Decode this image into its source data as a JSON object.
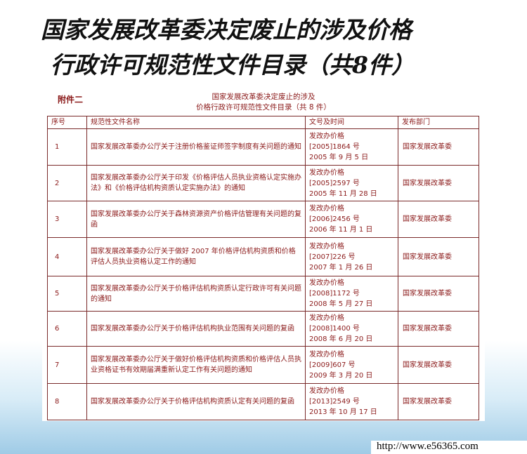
{
  "header": {
    "title_lines": [
      "国家发展改革委决定废止的涉及价格",
      "行政许可规范性文件目录（共8件）"
    ]
  },
  "document": {
    "attachment": "附件二",
    "title_lines": [
      "国家发展改革委决定废止的涉及",
      "价格行政许可规范性文件目录（共 8 件）"
    ]
  },
  "table": {
    "columns": [
      "序号",
      "规范性文件名称",
      "文号及时间",
      "发布部门"
    ],
    "rows": [
      [
        "1",
        "国家发展改革委办公厅关于注册价格鉴证师签字制度有关问题的通知",
        [
          "发改办价格",
          "[2005]1864 号",
          "2005 年 9 月 5 日"
        ],
        "国家发展改革委"
      ],
      [
        "2",
        "国家发展改革委办公厅关于印发《价格评估人员执业资格认定实施办法》和《价格评估机构资质认定实施办法》的通知",
        [
          "发改办价格",
          "[2005]2597 号",
          "2005 年 11 月 28 日"
        ],
        "国家发展改革委"
      ],
      [
        "3",
        "国家发展改革委办公厅关于森林资源资产价格评估管理有关问题的复函",
        [
          "发改办价格",
          "[2006]2456 号",
          "2006 年 11 月 1 日"
        ],
        "国家发展改革委"
      ],
      [
        "4",
        "国家发展改革委办公厅关于做好 2007 年价格评估机构资质和价格评估人员执业资格认定工作的通知",
        [
          "发改办价格",
          "[2007]226 号",
          "2007 年 1 月 26 日"
        ],
        "国家发展改革委"
      ],
      [
        "5",
        "国家发展改革委办公厅关于价格评估机构资质认定行政许可有关问题的通知",
        [
          "发改办价格",
          "[2008]1172 号",
          "2008 年 5 月 27 日"
        ],
        "国家发展改革委"
      ],
      [
        "6",
        "国家发展改革委办公厅关于价格评估机构执业范围有关问题的复函",
        [
          "发改办价格",
          "[2008]1400 号",
          "2008 年 6 月 20 日"
        ],
        "国家发展改革委"
      ],
      [
        "7",
        "国家发展改革委办公厅关于做好价格评估机构资质和价格评估人员执业资格证书有效期届满重新认定工作有关问题的通知",
        [
          "发改办价格",
          "[2009]607 号",
          "2009 年 3 月 20 日"
        ],
        "国家发展改革委"
      ],
      [
        "8",
        "国家发展改革委办公厅关于价格评估机构资质认定有关问题的复函",
        [
          "发改办价格",
          "[2013]2549 号",
          "2013 年 10 月 17 日"
        ],
        "国家发展改革委"
      ]
    ]
  },
  "footer": {
    "url": "http://www.e56365.com"
  }
}
